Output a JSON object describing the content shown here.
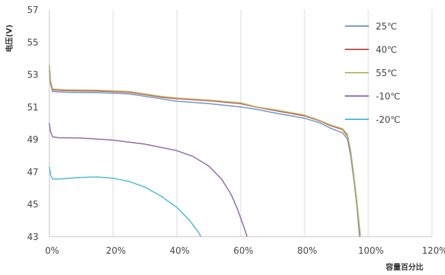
{
  "chart_data": {
    "type": "line",
    "title": "",
    "xlabel": "容量百分比",
    "ylabel": "电压(V)",
    "xlim": [
      0,
      120
    ],
    "ylim": [
      43,
      57
    ],
    "x_ticks": [
      0,
      20,
      40,
      60,
      80,
      100,
      120
    ],
    "x_tick_labels": [
      "0%",
      "20%",
      "40%",
      "60%",
      "80%",
      "100%",
      "120%"
    ],
    "y_ticks": [
      43,
      45,
      47,
      49,
      51,
      53,
      55,
      57
    ],
    "y_tick_labels": [
      "43",
      "45",
      "47",
      "49",
      "51",
      "53",
      "55",
      "57"
    ],
    "grid": "vertical",
    "legend_position": "top-right",
    "series": [
      {
        "name": "25℃",
        "color": "#6f95c9",
        "points": [
          [
            0,
            53.3
          ],
          [
            0.4,
            52.4
          ],
          [
            1,
            51.95
          ],
          [
            5,
            51.9
          ],
          [
            15,
            51.88
          ],
          [
            25,
            51.8
          ],
          [
            30,
            51.65
          ],
          [
            35,
            51.5
          ],
          [
            40,
            51.35
          ],
          [
            50,
            51.2
          ],
          [
            60,
            51.0
          ],
          [
            65,
            50.85
          ],
          [
            70,
            50.65
          ],
          [
            80,
            50.3
          ],
          [
            85,
            50.0
          ],
          [
            88,
            49.7
          ],
          [
            92,
            49.4
          ],
          [
            93.5,
            49.0
          ],
          [
            94.5,
            48.0
          ],
          [
            95.5,
            46.5
          ],
          [
            96.5,
            44.8
          ],
          [
            97.3,
            43.0
          ]
        ]
      },
      {
        "name": "40℃",
        "color": "#c0504d",
        "points": [
          [
            0,
            53.5
          ],
          [
            0.4,
            52.5
          ],
          [
            1,
            52.05
          ],
          [
            5,
            52.0
          ],
          [
            15,
            51.98
          ],
          [
            25,
            51.9
          ],
          [
            30,
            51.75
          ],
          [
            35,
            51.6
          ],
          [
            40,
            51.5
          ],
          [
            50,
            51.38
          ],
          [
            60,
            51.2
          ],
          [
            65,
            50.98
          ],
          [
            70,
            50.8
          ],
          [
            80,
            50.45
          ],
          [
            85,
            50.12
          ],
          [
            88,
            49.85
          ],
          [
            92,
            49.6
          ],
          [
            93.5,
            49.2
          ],
          [
            94.5,
            48.2
          ],
          [
            95.5,
            46.7
          ],
          [
            96.5,
            45.0
          ],
          [
            97.5,
            43.0
          ]
        ]
      },
      {
        "name": "55℃",
        "color": "#b8b86a",
        "points": [
          [
            0,
            53.6
          ],
          [
            0.4,
            52.6
          ],
          [
            1,
            52.1
          ],
          [
            5,
            52.05
          ],
          [
            15,
            52.03
          ],
          [
            25,
            51.95
          ],
          [
            30,
            51.8
          ],
          [
            35,
            51.65
          ],
          [
            40,
            51.55
          ],
          [
            50,
            51.42
          ],
          [
            60,
            51.25
          ],
          [
            65,
            51.0
          ],
          [
            70,
            50.85
          ],
          [
            80,
            50.5
          ],
          [
            85,
            50.15
          ],
          [
            88,
            49.9
          ],
          [
            92,
            49.65
          ],
          [
            93.5,
            49.3
          ],
          [
            94.5,
            48.3
          ],
          [
            95.5,
            46.8
          ],
          [
            96.5,
            45.1
          ],
          [
            97.6,
            43.0
          ]
        ]
      },
      {
        "name": "-10℃",
        "color": "#8e6bb1",
        "points": [
          [
            0,
            50.0
          ],
          [
            0.3,
            49.5
          ],
          [
            1,
            49.15
          ],
          [
            3,
            49.1
          ],
          [
            10,
            49.08
          ],
          [
            20,
            48.95
          ],
          [
            30,
            48.7
          ],
          [
            40,
            48.3
          ],
          [
            45,
            47.95
          ],
          [
            50,
            47.35
          ],
          [
            54,
            46.55
          ],
          [
            57,
            45.6
          ],
          [
            59,
            44.7
          ],
          [
            61,
            43.6
          ],
          [
            62,
            43.0
          ]
        ]
      },
      {
        "name": "-20℃",
        "color": "#4bbcd5",
        "points": [
          [
            0,
            47.3
          ],
          [
            0.4,
            46.8
          ],
          [
            1,
            46.55
          ],
          [
            3,
            46.55
          ],
          [
            10,
            46.65
          ],
          [
            15,
            46.68
          ],
          [
            20,
            46.6
          ],
          [
            25,
            46.4
          ],
          [
            30,
            46.05
          ],
          [
            35,
            45.5
          ],
          [
            40,
            44.8
          ],
          [
            44,
            44.0
          ],
          [
            47,
            43.2
          ],
          [
            47.5,
            43.0
          ]
        ]
      }
    ]
  }
}
